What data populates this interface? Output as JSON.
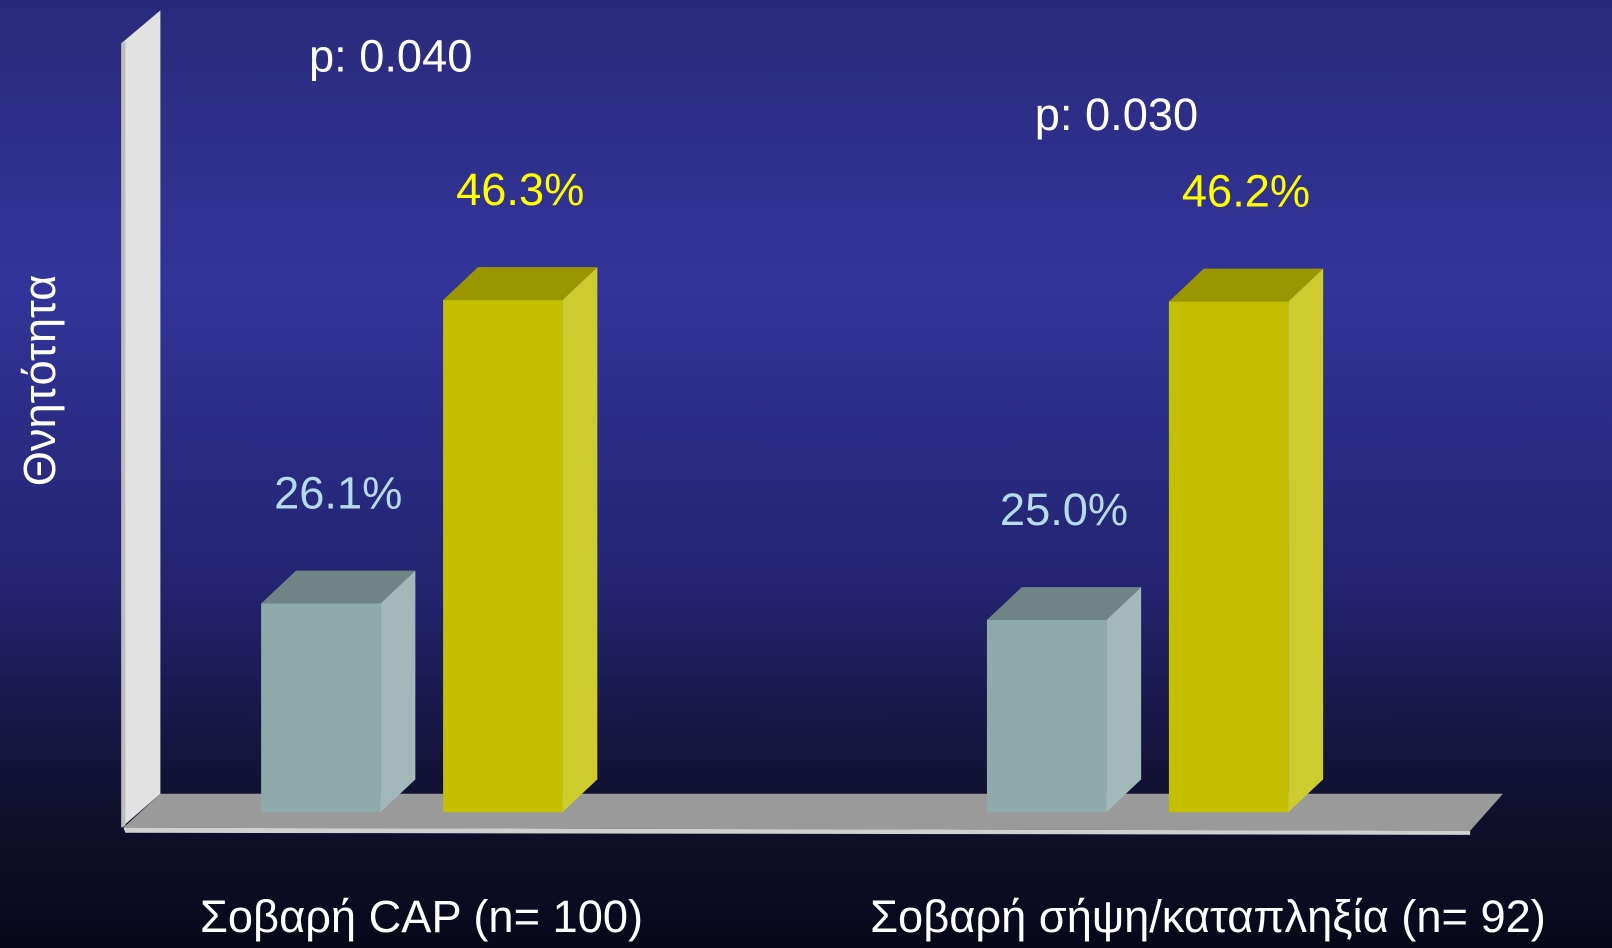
{
  "chart_data": {
    "type": "bar3d",
    "y_label": "Θνητότητα",
    "annotations": [
      "p: 0.040",
      "p: 0.030"
    ],
    "categories": [
      "Σοβαρή CAP (n= 100)",
      "Σοβαρή σήψη/καταπληξία (n= 92)"
    ],
    "series": [
      {
        "color": "#8faaaa",
        "values": [
          26.1,
          25.0
        ],
        "value_labels": [
          "26.1%",
          "25.0%"
        ]
      },
      {
        "color": "#c4c000",
        "values": [
          46.3,
          46.2
        ],
        "value_labels": [
          "46.3%",
          "46.2%"
        ]
      }
    ],
    "ylim": [
      12.2,
      63.4
    ]
  }
}
